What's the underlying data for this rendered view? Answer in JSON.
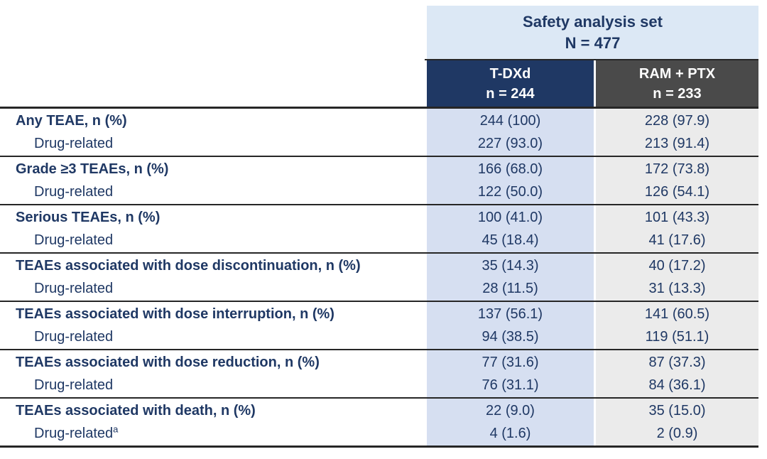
{
  "colors": {
    "header_band_blue": "#dce8f5",
    "col_header_navy": "#1f3864",
    "col_header_gray": "#4a4a4a",
    "body_col_blue": "#d6dff1",
    "body_col_gray": "#ebebeb",
    "text_navy": "#1f3864",
    "rule_line": "#262626",
    "background": "#ffffff"
  },
  "header": {
    "set_title": "Safety analysis set",
    "set_n": "N = 477",
    "col1_name": "T-DXd",
    "col1_n": "n = 244",
    "col2_name": "RAM + PTX",
    "col2_n": "n = 233"
  },
  "rows": [
    {
      "label": "Any TEAE, n (%)",
      "sublabel": "Drug-related",
      "sublabel_sup": "",
      "tdxd": [
        "244 (100)",
        "227 (93.0)"
      ],
      "ram_ptx": [
        "228 (97.9)",
        "213 (91.4)"
      ]
    },
    {
      "label": "Grade ≥3 TEAEs, n (%)",
      "sublabel": "Drug-related",
      "sublabel_sup": "",
      "tdxd": [
        "166 (68.0)",
        "122 (50.0)"
      ],
      "ram_ptx": [
        "172 (73.8)",
        "126 (54.1)"
      ]
    },
    {
      "label": "Serious TEAEs, n (%)",
      "sublabel": "Drug-related",
      "sublabel_sup": "",
      "tdxd": [
        "100 (41.0)",
        "45 (18.4)"
      ],
      "ram_ptx": [
        "101 (43.3)",
        "41 (17.6)"
      ]
    },
    {
      "label": "TEAEs associated with dose discontinuation, n (%)",
      "sublabel": "Drug-related",
      "sublabel_sup": "",
      "tdxd": [
        "35 (14.3)",
        "28 (11.5)"
      ],
      "ram_ptx": [
        "40 (17.2)",
        "31 (13.3)"
      ]
    },
    {
      "label": "TEAEs associated with dose interruption, n (%)",
      "sublabel": "Drug-related",
      "sublabel_sup": "",
      "tdxd": [
        "137 (56.1)",
        "94 (38.5)"
      ],
      "ram_ptx": [
        "141 (60.5)",
        "119 (51.1)"
      ]
    },
    {
      "label": "TEAEs associated with dose reduction, n (%)",
      "sublabel": "Drug-related",
      "sublabel_sup": "",
      "tdxd": [
        "77 (31.6)",
        "76 (31.1)"
      ],
      "ram_ptx": [
        "87 (37.3)",
        "84 (36.1)"
      ]
    },
    {
      "label": "TEAEs associated with death, n (%)",
      "sublabel": "Drug-related",
      "sublabel_sup": "a",
      "tdxd": [
        "22 (9.0)",
        "4 (1.6)"
      ],
      "ram_ptx": [
        "35 (15.0)",
        "2 (0.9)"
      ]
    }
  ]
}
